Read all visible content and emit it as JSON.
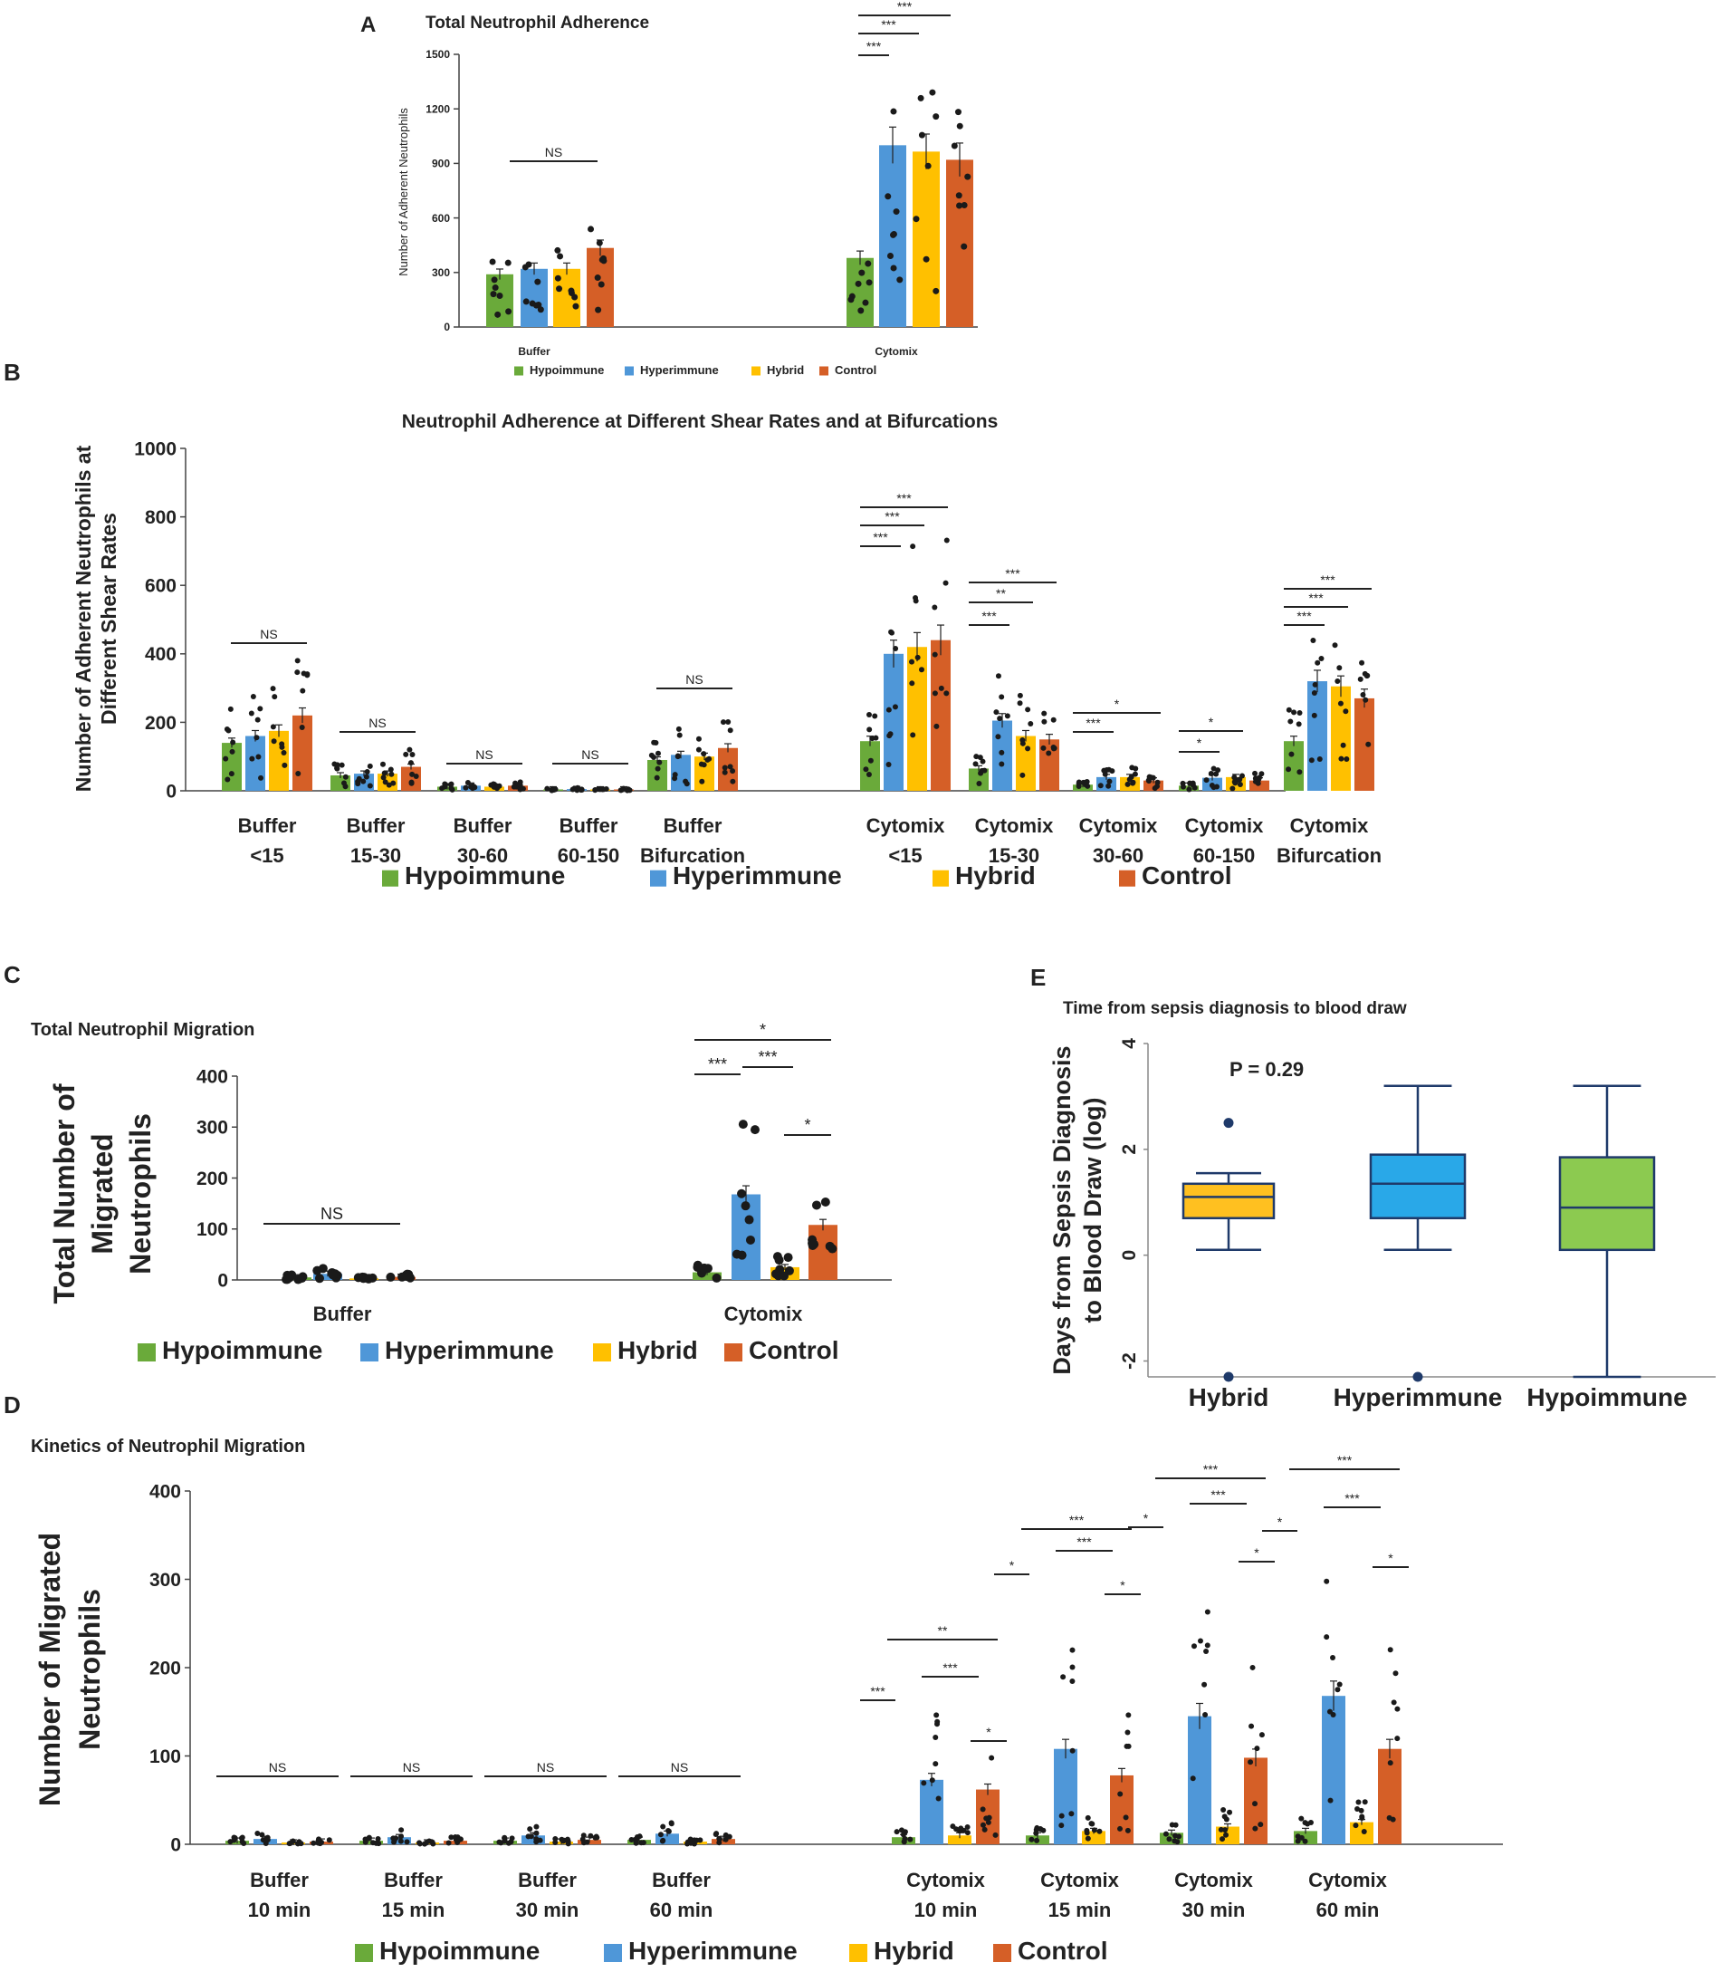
{
  "colors": {
    "Hypoimmune": "#6aaa3a",
    "Hyperimmune": "#4f97d8",
    "Hybrid": "#ffc000",
    "Control": "#d55f27",
    "box_hybrid": "#ffc020",
    "box_hyper": "#29a8e8",
    "box_hypo": "#8cca50",
    "box_line": "#1f3a6a",
    "axis": "#444444"
  },
  "chart_data": [
    {
      "id": "A",
      "panel_label": "A",
      "type": "bar",
      "title": "Total Neutrophil Adherence",
      "ylabel": "Number of Adherent Neutrophils",
      "ylim": [
        0,
        1500
      ],
      "yticks": [
        "0",
        "300",
        "600",
        "900",
        "1200",
        "1500"
      ],
      "categories": [
        "Buffer",
        "Cytomix"
      ],
      "series": [
        {
          "name": "Hypoimmune",
          "values": [
            290,
            380
          ]
        },
        {
          "name": "Hyperimmune",
          "values": [
            320,
            1000
          ]
        },
        {
          "name": "Hybrid",
          "values": [
            320,
            965
          ]
        },
        {
          "name": "Control",
          "values": [
            435,
            920
          ]
        }
      ],
      "legend": [
        "Hypoimmune",
        "Hyperimmune",
        "Hybrid",
        "Control"
      ],
      "annotations": [
        "NS",
        "***",
        "***",
        "***"
      ]
    },
    {
      "id": "B",
      "panel_label": "B",
      "type": "bar",
      "title": "Neutrophil Adherence at Different Shear Rates and at Bifurcations",
      "ylabel": "Number of Adherent Neutrophils at Different Shear Rates",
      "ylim": [
        0,
        1000
      ],
      "yticks": [
        "0",
        "200",
        "400",
        "600",
        "800",
        "1000"
      ],
      "categories": [
        [
          "Buffer",
          "<15"
        ],
        [
          "Buffer",
          "15-30"
        ],
        [
          "Buffer",
          "30-60"
        ],
        [
          "Buffer",
          "60-150"
        ],
        [
          "Buffer",
          "Bifurcation"
        ],
        [
          "Cytomix",
          "<15"
        ],
        [
          "Cytomix",
          "15-30"
        ],
        [
          "Cytomix",
          "30-60"
        ],
        [
          "Cytomix",
          "60-150"
        ],
        [
          "Cytomix",
          "Bifurcation"
        ]
      ],
      "series": [
        {
          "name": "Hypoimmune",
          "values": [
            140,
            45,
            12,
            4,
            90,
            145,
            65,
            18,
            15,
            145
          ]
        },
        {
          "name": "Hyperimmune",
          "values": [
            160,
            50,
            15,
            5,
            105,
            400,
            205,
            40,
            38,
            320
          ]
        },
        {
          "name": "Hybrid",
          "values": [
            175,
            50,
            12,
            4,
            100,
            420,
            160,
            40,
            40,
            305
          ]
        },
        {
          "name": "Control",
          "values": [
            220,
            70,
            15,
            4,
            125,
            440,
            150,
            30,
            30,
            270
          ]
        }
      ],
      "legend": [
        "Hypoimmune",
        "Hyperimmune",
        "Hybrid",
        "Control"
      ],
      "annotations": [
        "NS",
        "NS",
        "NS",
        "NS",
        "NS",
        "***",
        "***",
        "***",
        "***",
        "**",
        "***",
        "***",
        "*",
        "*",
        "*",
        "***",
        "***",
        "***"
      ]
    },
    {
      "id": "C",
      "panel_label": "C",
      "type": "bar",
      "title": "Total Neutrophil Migration",
      "ylabel": "Total Number of Migrated Neutrophils",
      "ylim": [
        0,
        400
      ],
      "yticks": [
        "0",
        "100",
        "200",
        "300",
        "400"
      ],
      "categories": [
        "Buffer",
        "Cytomix"
      ],
      "series": [
        {
          "name": "Hypoimmune",
          "values": [
            5,
            15
          ]
        },
        {
          "name": "Hyperimmune",
          "values": [
            12,
            168
          ]
        },
        {
          "name": "Hybrid",
          "values": [
            3,
            25
          ]
        },
        {
          "name": "Control",
          "values": [
            6,
            108
          ]
        }
      ],
      "legend": [
        "Hypoimmune",
        "Hyperimmune",
        "Hybrid",
        "Control"
      ],
      "annotations": [
        "NS",
        "*",
        "***",
        "***",
        "*"
      ]
    },
    {
      "id": "D",
      "panel_label": "D",
      "type": "bar",
      "title": "Kinetics of Neutrophil Migration",
      "ylabel": "Number of Migrated Neutrophils",
      "ylim": [
        0,
        400
      ],
      "yticks": [
        "0",
        "100",
        "200",
        "300",
        "400"
      ],
      "categories": [
        [
          "Buffer",
          "10 min"
        ],
        [
          "Buffer",
          "15 min"
        ],
        [
          "Buffer",
          "30 min"
        ],
        [
          "Buffer",
          "60 min"
        ],
        [
          "Cytomix",
          "10 min"
        ],
        [
          "Cytomix",
          "15 min"
        ],
        [
          "Cytomix",
          "30 min"
        ],
        [
          "Cytomix",
          "60 min"
        ]
      ],
      "series": [
        {
          "name": "Hypoimmune",
          "values": [
            4,
            4,
            4,
            5,
            8,
            10,
            13,
            15
          ]
        },
        {
          "name": "Hyperimmune",
          "values": [
            6,
            8,
            10,
            12,
            73,
            108,
            145,
            168
          ]
        },
        {
          "name": "Hybrid",
          "values": [
            2,
            2,
            3,
            3,
            10,
            15,
            20,
            25
          ]
        },
        {
          "name": "Control",
          "values": [
            3,
            4,
            5,
            6,
            62,
            78,
            98,
            108
          ]
        }
      ],
      "legend": [
        "Hypoimmune",
        "Hyperimmune",
        "Hybrid",
        "Control"
      ],
      "annotations": [
        "NS",
        "NS",
        "NS",
        "NS",
        "**",
        "***",
        "***",
        "*",
        "***",
        "***",
        "*",
        "*",
        "***",
        "***",
        "*",
        "*",
        "***",
        "***",
        "*"
      ]
    },
    {
      "id": "E",
      "panel_label": "E",
      "type": "box",
      "title": "Time from sepsis diagnosis to blood draw",
      "ylabel": "Days from Sepsis Diagnosis to Blood Draw (log)",
      "ylim": [
        -2.3,
        4
      ],
      "yticks": [
        "4",
        "2",
        "0",
        "-2"
      ],
      "categories": [
        "Hybrid",
        "Hyperimmune",
        "Hypoimmune"
      ],
      "boxes": [
        {
          "name": "Hybrid",
          "min": 0.1,
          "q1": 0.7,
          "median": 1.1,
          "q3": 1.35,
          "max": 1.55,
          "outliers": [
            2.5,
            -2.3
          ]
        },
        {
          "name": "Hyperimmune",
          "min": 0.1,
          "q1": 0.7,
          "median": 1.35,
          "q3": 1.9,
          "max": 3.2,
          "outliers": [
            -2.3
          ]
        },
        {
          "name": "Hypoimmune",
          "min": -2.3,
          "q1": 0.1,
          "median": 0.9,
          "q3": 1.85,
          "max": 3.2,
          "outliers": []
        }
      ],
      "annotation": "P = 0.29"
    }
  ]
}
